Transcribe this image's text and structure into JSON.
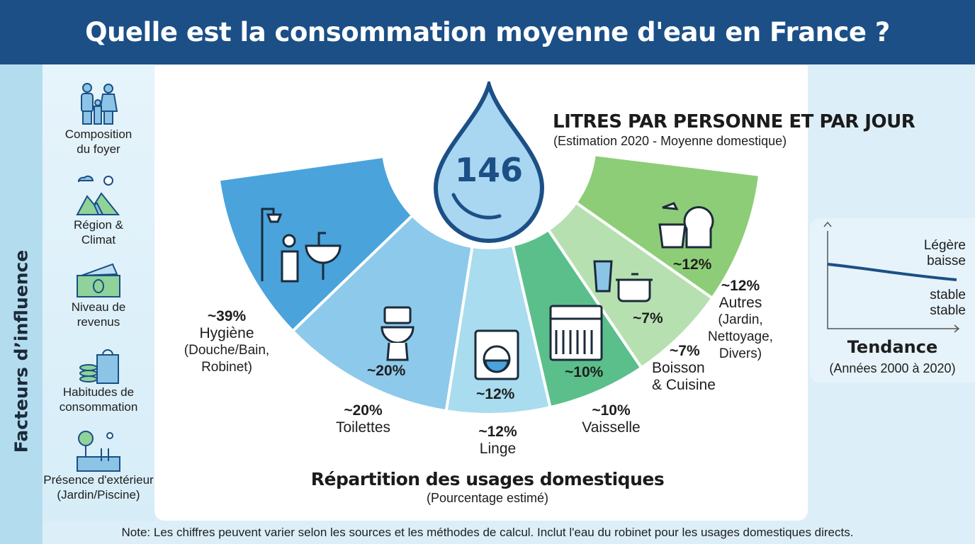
{
  "title": "Quelle est la consommation moyenne d'eau en France ?",
  "sidebar": {
    "heading": "Facteurs d’influence",
    "factors": [
      {
        "icon": "family-icon",
        "label1": "Composition",
        "label2": "du foyer"
      },
      {
        "icon": "region-climate-icon",
        "label1": "Région &",
        "label2": "Climat"
      },
      {
        "icon": "money-icon",
        "label1": "Niveau de",
        "label2": "revenus"
      },
      {
        "icon": "shopping-coins-icon",
        "label1": "Habitudes de",
        "label2": "consommation"
      },
      {
        "icon": "garden-pool-icon",
        "label1": "Présence d'extérieur",
        "label2": "(Jardin/Piscine)"
      }
    ]
  },
  "headline": {
    "value": "146",
    "label": "LITRES PAR PERSONNE ET PAR JOUR",
    "sub": "(Estimation 2020 - Moyenne domestique)"
  },
  "chart_data": {
    "type": "pie",
    "variant": "semi-donut",
    "title": "Répartition des usages domestiques",
    "subtitle": "(Pourcentage estimé)",
    "categories": [
      "Hygiène",
      "Toilettes",
      "Linge",
      "Vaisselle",
      "Boisson & Cuisine",
      "Autres"
    ],
    "values": [
      39,
      20,
      12,
      10,
      7,
      12
    ],
    "data_labels": [
      "~39%",
      "~20%",
      "~12%",
      "~10%",
      "~7%",
      "~12%"
    ],
    "details": [
      "(Douche/Bain, Robinet)",
      "",
      "",
      "",
      "",
      "(Jardin, Nettoyage, Divers)"
    ],
    "colors": [
      "#4aa3db",
      "#8dc9ea",
      "#a8dcee",
      "#5bbf8b",
      "#b7e0b1",
      "#8ecd77"
    ]
  },
  "labels": {
    "hyg": {
      "pct": "~39%",
      "name": "Hygiène",
      "d1": "(Douche/Bain,",
      "d2": "Robinet)"
    },
    "toi": {
      "pct": "~20%",
      "name": "Toilettes"
    },
    "lin": {
      "pct": "~12%",
      "name": "Linge"
    },
    "vai": {
      "pct": "~10%",
      "name": "Vaisselle"
    },
    "boi": {
      "pct": "~7%",
      "name1": "Boisson",
      "name2": "& Cuisine"
    },
    "aut": {
      "pct": "~12%",
      "name": "Autres",
      "d1": "(Jardin,",
      "d2": "Nettoyage,",
      "d3": "Divers)"
    }
  },
  "trend": {
    "title": "Tendance",
    "sub": "(Années 2000 à 2020)",
    "top1": "Légère",
    "top2": "baisse",
    "bot1": "stable",
    "bot2": "stable",
    "line_color": "#1b4f86",
    "direction": "slight decrease"
  },
  "note": "Note: Les chiffres peuvent varier selon les sources et les méthodes de calcul. Inclut l'eau du robinet pour les usages domestiques directs."
}
